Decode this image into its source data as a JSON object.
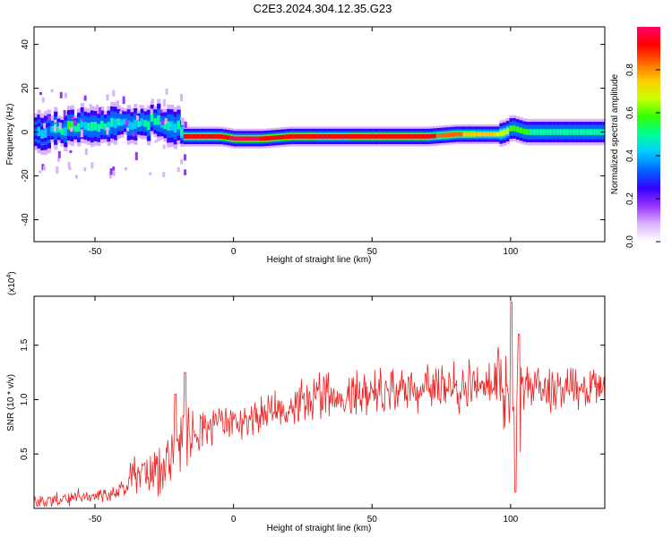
{
  "figure": {
    "title": "C2E3.2024.304.12.35.G23"
  },
  "chart_data": [
    {
      "type": "heatmap",
      "xlabel": "Height of straight line (km)",
      "ylabel": "Frequency (Hz)",
      "xlim": [
        -72,
        134
      ],
      "ylim": [
        -50,
        48
      ],
      "xticks": [
        -50,
        0,
        50,
        100
      ],
      "yticks": [
        -40,
        -20,
        0,
        20,
        40
      ],
      "colorbar": {
        "label": "Normalized spectral amplitude",
        "range": [
          0,
          1
        ],
        "ticks": [
          0.0,
          0.2,
          0.4,
          0.6,
          0.8
        ],
        "colors": [
          "#ffffff",
          "#d9b3ff",
          "#9933ff",
          "#3300ff",
          "#0066ff",
          "#00ccff",
          "#00ff99",
          "#33ff00",
          "#ccff00",
          "#ffcc00",
          "#ff6600",
          "#ff0000",
          "#ff0066"
        ]
      },
      "ridge": {
        "x": [
          -72,
          -65,
          -60,
          -55,
          -50,
          -45,
          -40,
          -35,
          -30,
          -25,
          -20,
          -18,
          -10,
          -5,
          0,
          5,
          10,
          20,
          30,
          40,
          50,
          60,
          70,
          80,
          90,
          95,
          98,
          100,
          105,
          110,
          120,
          130,
          134
        ],
        "frequency": [
          0,
          1,
          2,
          3,
          3,
          4,
          4,
          3,
          5,
          3,
          2,
          -2,
          -2,
          -2,
          -3,
          -3,
          -3,
          -2,
          -2,
          -2,
          -2,
          -2,
          -2,
          -1,
          -1,
          -1,
          0,
          2,
          0,
          0,
          0,
          0,
          0
        ],
        "amplitude": [
          0.45,
          0.5,
          0.6,
          0.55,
          0.6,
          0.55,
          0.5,
          0.55,
          0.6,
          0.55,
          0.5,
          0.9,
          0.9,
          0.9,
          1.0,
          1.0,
          0.95,
          0.95,
          0.9,
          0.9,
          0.92,
          0.92,
          0.9,
          0.8,
          0.75,
          0.7,
          0.65,
          0.6,
          0.55,
          0.5,
          0.5,
          0.5,
          0.5
        ]
      }
    },
    {
      "type": "line",
      "xlabel": "Height of straight line (km)",
      "ylabel": "SNR (10 * v/v)",
      "y_multiplier": "(x10^4)",
      "xlim": [
        -72,
        134
      ],
      "ylim": [
        0,
        1.95
      ],
      "xticks": [
        -50,
        0,
        50,
        100
      ],
      "yticks": [
        0.5,
        1.0,
        1.5
      ],
      "series": [
        {
          "color": "#ee2222",
          "x": [
            -72,
            -65,
            -60,
            -55,
            -50,
            -45,
            -40,
            -35,
            -30,
            -25,
            -22,
            -20,
            -18,
            -15,
            -10,
            -5,
            0,
            10,
            20,
            30,
            40,
            50,
            60,
            70,
            80,
            90,
            95,
            98,
            100,
            102,
            105,
            110,
            120,
            130,
            134
          ],
          "values": [
            0.05,
            0.07,
            0.09,
            0.1,
            0.1,
            0.13,
            0.18,
            0.25,
            0.33,
            0.4,
            0.5,
            0.55,
            0.62,
            0.68,
            0.72,
            0.76,
            0.8,
            0.85,
            0.94,
            1.02,
            1.06,
            1.08,
            1.1,
            1.12,
            1.12,
            1.12,
            1.12,
            1.1,
            1.05,
            1.08,
            1.12,
            1.12,
            1.12,
            1.12,
            1.12
          ]
        }
      ]
    }
  ]
}
